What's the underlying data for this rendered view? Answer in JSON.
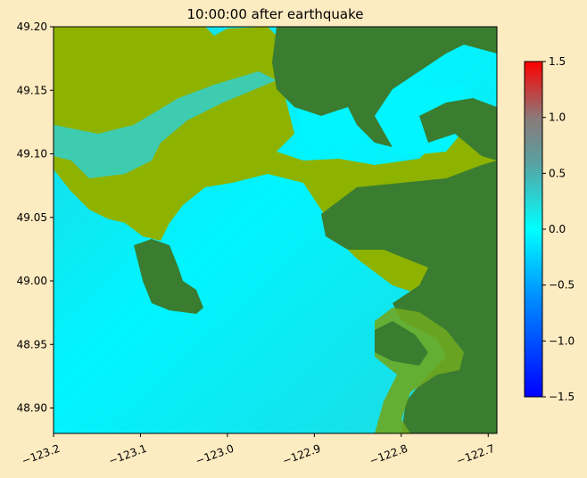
{
  "chart_data": {
    "type": "heatmap",
    "title": "10:00:00 after earthquake",
    "xlim": [
      -123.2,
      -122.69
    ],
    "ylim": [
      48.88,
      49.2
    ],
    "x_ticks": [
      -123.2,
      -123.1,
      -123.0,
      -122.9,
      -122.8,
      -122.7
    ],
    "x_tick_labels": [
      "−123.2",
      "−123.1",
      "−123.0",
      "−122.9",
      "−122.8",
      "−122.7"
    ],
    "y_ticks": [
      49.2,
      49.15,
      49.1,
      49.05,
      49.0,
      48.95,
      48.9
    ],
    "y_tick_labels": [
      "49.20",
      "49.15",
      "49.10",
      "49.05",
      "49.00",
      "48.95",
      "48.90"
    ],
    "colorbar": {
      "range": [
        -1.5,
        1.5
      ],
      "ticks": [
        1.5,
        1.0,
        0.5,
        0.0,
        -0.5,
        -1.0,
        -1.5
      ],
      "tick_labels": [
        "1.5",
        "1.0",
        "0.5",
        "0.0",
        "−0.5",
        "−1.0",
        "−1.5"
      ],
      "colors": [
        "#0000ff",
        "#00e5ff",
        "#00ffff",
        "#6b8e8e",
        "#ff0000"
      ]
    },
    "colors": {
      "water": "#1ee0e6",
      "water_bright": "#00ffff",
      "lowland": "#8db300",
      "land": "#3a7d30",
      "frame": "#000000"
    }
  }
}
